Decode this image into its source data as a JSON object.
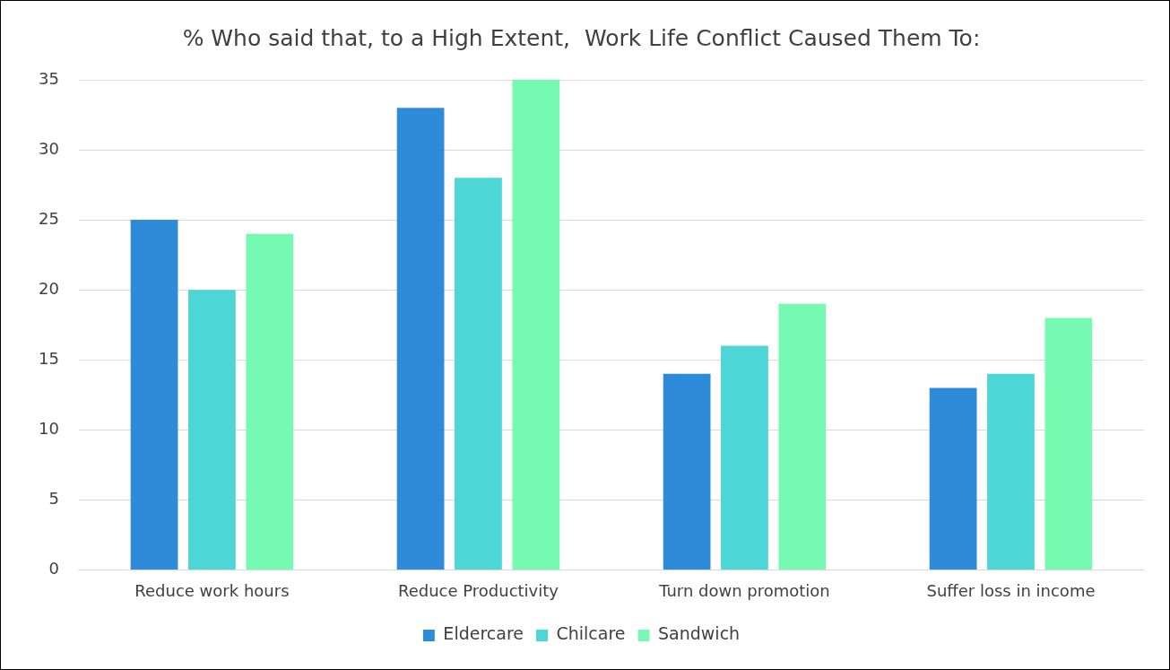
{
  "chart_data": {
    "type": "bar",
    "title": "% Who said that, to a High Extent,  Work Life Conflict Caused Them To:",
    "categories": [
      "Reduce work hours",
      "Reduce Productivity",
      "Turn down promotion",
      "Suffer loss in income"
    ],
    "series": [
      {
        "name": "Eldercare",
        "color": "#2e8bd9",
        "values": [
          25,
          33,
          14,
          13
        ]
      },
      {
        "name": "Chilcare",
        "color": "#4dd6d6",
        "values": [
          20,
          28,
          16,
          14
        ]
      },
      {
        "name": "Sandwich",
        "color": "#76f9b0",
        "values": [
          24,
          35,
          19,
          18
        ]
      }
    ],
    "ylim": [
      0,
      35
    ],
    "yticks": [
      0,
      5,
      10,
      15,
      20,
      25,
      30,
      35
    ],
    "grid": "y",
    "legend": "bottom"
  }
}
